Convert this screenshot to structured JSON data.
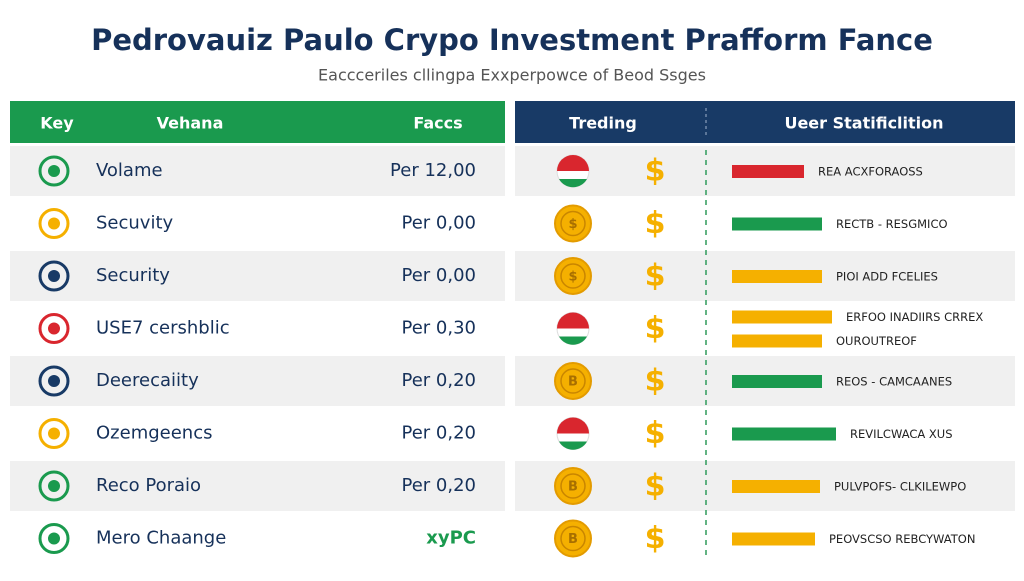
{
  "header": {
    "title": "Pedrovauiz Paulo Crypo Investment Prafform Fance",
    "subtitle": "Eaccceriles cllingpa Exxperpowce of Beod Ssges"
  },
  "left_table": {
    "columns": [
      "Key",
      "Vehana",
      "Faccs"
    ],
    "rows": [
      {
        "name": "Volame",
        "value": "Per 12,00",
        "icon": "green"
      },
      {
        "name": "Secuvity",
        "value": "Per 0,00",
        "icon": "orange"
      },
      {
        "name": "Security",
        "value": "Per 0,00",
        "icon": "navy"
      },
      {
        "name": "USE7 cershblic",
        "value": "Per 0,30",
        "icon": "red"
      },
      {
        "name": "Deerecaiity",
        "value": "Per 0,20",
        "icon": "navy"
      },
      {
        "name": "Ozemgeencs",
        "value": "Per 0,20",
        "icon": "orange"
      },
      {
        "name": "Reco Poraio",
        "value": "Per 0,20",
        "icon": "green"
      },
      {
        "name": "Mero Chaange",
        "value": "xyPC",
        "icon": "green"
      }
    ]
  },
  "right_table": {
    "columns": [
      "Treding",
      "Ueer Statificlition"
    ],
    "rows": [
      {
        "badge": "flag",
        "coin": null,
        "dollar": "$",
        "bars": [
          {
            "color": "red",
            "label": "REA  ACXFORAOSS"
          }
        ]
      },
      {
        "badge": "coin",
        "coin": "$",
        "dollar": "$",
        "bars": [
          {
            "color": "green",
            "label": "RECTB  -  RESGMICO"
          }
        ]
      },
      {
        "badge": "coin",
        "coin": "$",
        "dollar": "$",
        "bars": [
          {
            "color": "orange",
            "label": "PIOI ADD FCELIES"
          }
        ]
      },
      {
        "badge": "flag",
        "coin": null,
        "dollar": "$",
        "bars": [
          {
            "color": "orange",
            "label": "ERFOO INADIIRS CRREX"
          },
          {
            "color": "orange",
            "label": "OUROUTREOF"
          }
        ]
      },
      {
        "badge": "coin",
        "coin": "B",
        "dollar": "$",
        "bars": [
          {
            "color": "green",
            "label": "REOS  -  CAMCAANES"
          }
        ]
      },
      {
        "badge": "flag",
        "coin": null,
        "dollar": "$",
        "bars": [
          {
            "color": "green",
            "label": "REVILCWACA XUS"
          }
        ]
      },
      {
        "badge": "coin",
        "coin": "B",
        "dollar": "$",
        "bars": [
          {
            "color": "orange",
            "label": "PULVPOFS- CLKILEWPO"
          }
        ]
      },
      {
        "badge": "coin",
        "coin": "B",
        "dollar": "$",
        "bars": [
          {
            "color": "orange",
            "label": "PEOVSCSO REBCYWATON"
          }
        ]
      }
    ]
  }
}
